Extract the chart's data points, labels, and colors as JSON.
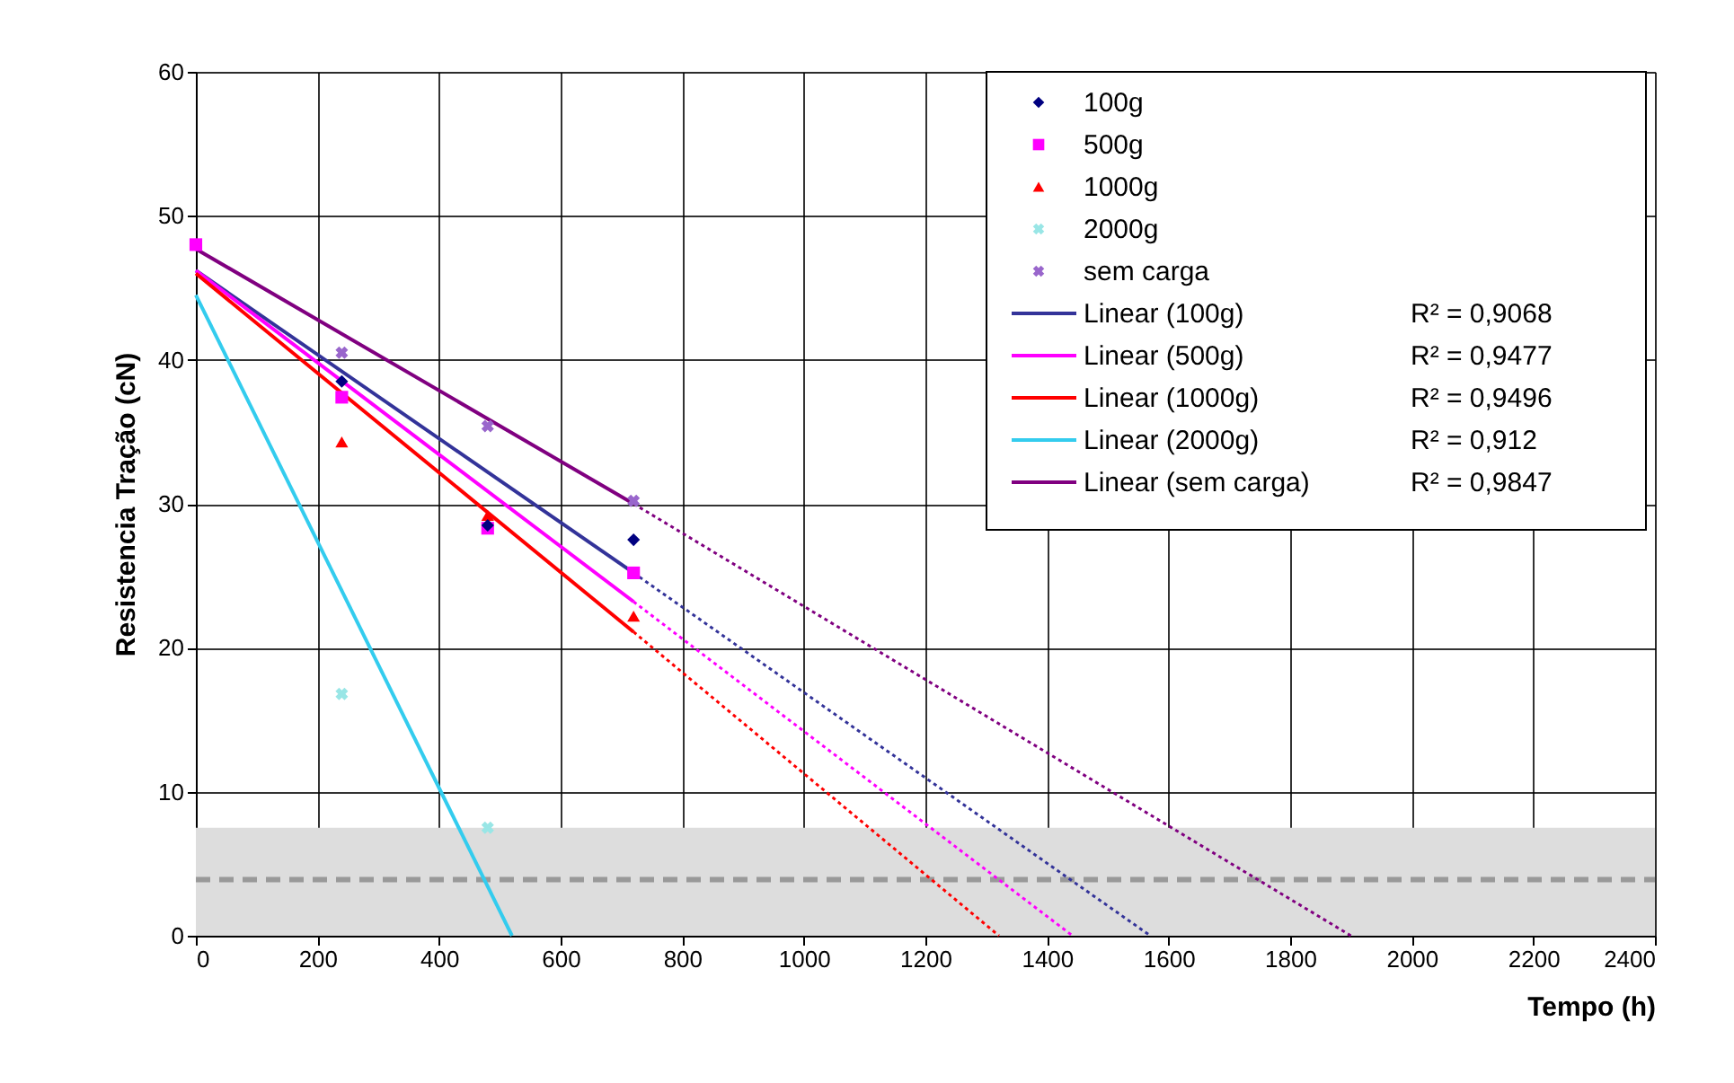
{
  "chart_data": {
    "type": "scatter",
    "xlabel": "Tempo (h)",
    "ylabel": "Resistencia Tração (cN)",
    "xlim": [
      0,
      2400
    ],
    "xticks": [
      0,
      200,
      400,
      600,
      800,
      1000,
      1200,
      1400,
      1600,
      1800,
      2000,
      2200,
      2400
    ],
    "ylim": [
      0,
      60
    ],
    "yticks": [
      0,
      10,
      20,
      30,
      40,
      50,
      60
    ],
    "grid": true,
    "legend": "top right",
    "series": [
      {
        "name": "100g",
        "marker": "diamond",
        "color": "#000080",
        "x": [
          240,
          480,
          720
        ],
        "values": [
          38.5,
          28.5,
          27.5
        ]
      },
      {
        "name": "500g",
        "marker": "square",
        "color": "#ff00ff",
        "x": [
          0,
          240,
          480,
          720
        ],
        "values": [
          48,
          37.4,
          28.3,
          25.2
        ]
      },
      {
        "name": "1000g",
        "marker": "triangle",
        "color": "#ff0000",
        "x": [
          240,
          480,
          720
        ],
        "values": [
          34.3,
          29.2,
          22.2
        ]
      },
      {
        "name": "2000g",
        "marker": "cross",
        "color": "#99e6e6",
        "x": [
          240,
          480
        ],
        "values": [
          16.8,
          7.5
        ]
      },
      {
        "name": "sem carga",
        "marker": "cross",
        "color": "#9966cc",
        "x": [
          240,
          480,
          720
        ],
        "values": [
          40.5,
          35.4,
          30.2
        ]
      },
      {
        "name": "Linear (100g)",
        "type": "line",
        "line_style": "solid",
        "color": "#333399",
        "x": [
          0,
          720
        ],
        "values": [
          46.2,
          25.2
        ]
      },
      {
        "name": "Linear (500g)",
        "type": "line",
        "line_style": "solid",
        "color": "#ff00ff",
        "x": [
          0,
          720
        ],
        "values": [
          46.2,
          23.2
        ]
      },
      {
        "name": "Linear (1000g)",
        "type": "line",
        "line_style": "solid",
        "color": "#ff0000",
        "x": [
          0,
          720
        ],
        "values": [
          46,
          21.1
        ]
      },
      {
        "name": "Linear (2000g)",
        "type": "line",
        "line_style": "solid",
        "color": "#33ccee",
        "x": [
          0,
          520
        ],
        "values": [
          44.5,
          0
        ]
      },
      {
        "name": "Linear (sem carga)",
        "type": "line",
        "line_style": "solid",
        "color": "#800080",
        "x": [
          0,
          720
        ],
        "values": [
          47.7,
          30
        ]
      },
      {
        "type": "line",
        "line_style": "dotted",
        "color": "#333399",
        "x": [
          720,
          1570
        ],
        "values": [
          25.2,
          0
        ]
      },
      {
        "type": "line",
        "line_style": "dotted",
        "color": "#ff00ff",
        "x": [
          720,
          1442
        ],
        "values": [
          23.2,
          0
        ]
      },
      {
        "type": "line",
        "line_style": "dotted",
        "color": "#ff0000",
        "x": [
          720,
          1321
        ],
        "values": [
          21.1,
          0
        ]
      },
      {
        "type": "line",
        "line_style": "dotted",
        "color": "#800080",
        "x": [
          720,
          1900
        ],
        "values": [
          30,
          0
        ]
      }
    ],
    "annotations": [
      "R² = 0,9068",
      "R² = 0,9477",
      "R² = 0,9496",
      "R² = 0,912",
      "R² = 0,9847"
    ],
    "bands": [
      {
        "axis": "y",
        "from": 0,
        "to": 7.5,
        "color": "#dddddd"
      }
    ],
    "ref_lines": [
      {
        "axis": "y",
        "value": 3.9,
        "color": "#999999",
        "line_style": "dashed"
      }
    ]
  }
}
